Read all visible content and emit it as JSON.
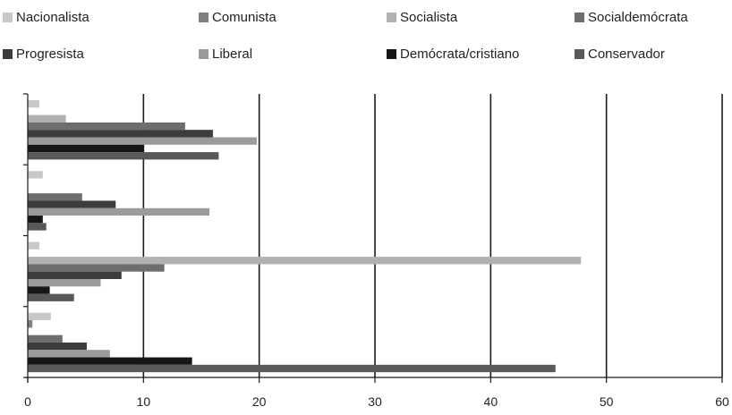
{
  "chart_data": {
    "type": "bar",
    "orientation": "horizontal",
    "title": "",
    "xlabel": "",
    "ylabel": "",
    "xlim": [
      0,
      60
    ],
    "x_ticks": [
      "0",
      "10",
      "20",
      "30",
      "40",
      "50",
      "60"
    ],
    "grid": "vertical lines",
    "legend_position": "top",
    "groups": 4,
    "series": [
      {
        "name": "Nacionalista",
        "color": "#c8c8c8",
        "values": [
          1.0,
          1.3,
          1.0,
          2.0
        ]
      },
      {
        "name": "Comunista",
        "color": "#7f7f7f",
        "values": [
          0.0,
          0.0,
          0.0,
          0.4
        ]
      },
      {
        "name": "Socialista",
        "color": "#b1b1b1",
        "values": [
          3.3,
          0.0,
          47.8,
          0.0
        ]
      },
      {
        "name": "Socialdemócrata",
        "color": "#6e6e6e",
        "values": [
          13.6,
          4.7,
          11.8,
          3.0
        ]
      },
      {
        "name": "Progresista",
        "color": "#3c3c3c",
        "values": [
          16.0,
          7.6,
          8.1,
          5.1
        ]
      },
      {
        "name": "Liberal",
        "color": "#9b9b9b",
        "values": [
          19.8,
          15.7,
          6.3,
          7.1
        ]
      },
      {
        "name": "Demócrata/cristiano",
        "color": "#161616",
        "values": [
          10.0,
          1.3,
          1.9,
          14.2
        ]
      },
      {
        "name": "Conservador",
        "color": "#595959",
        "values": [
          16.5,
          1.6,
          4.0,
          45.6
        ]
      }
    ]
  }
}
